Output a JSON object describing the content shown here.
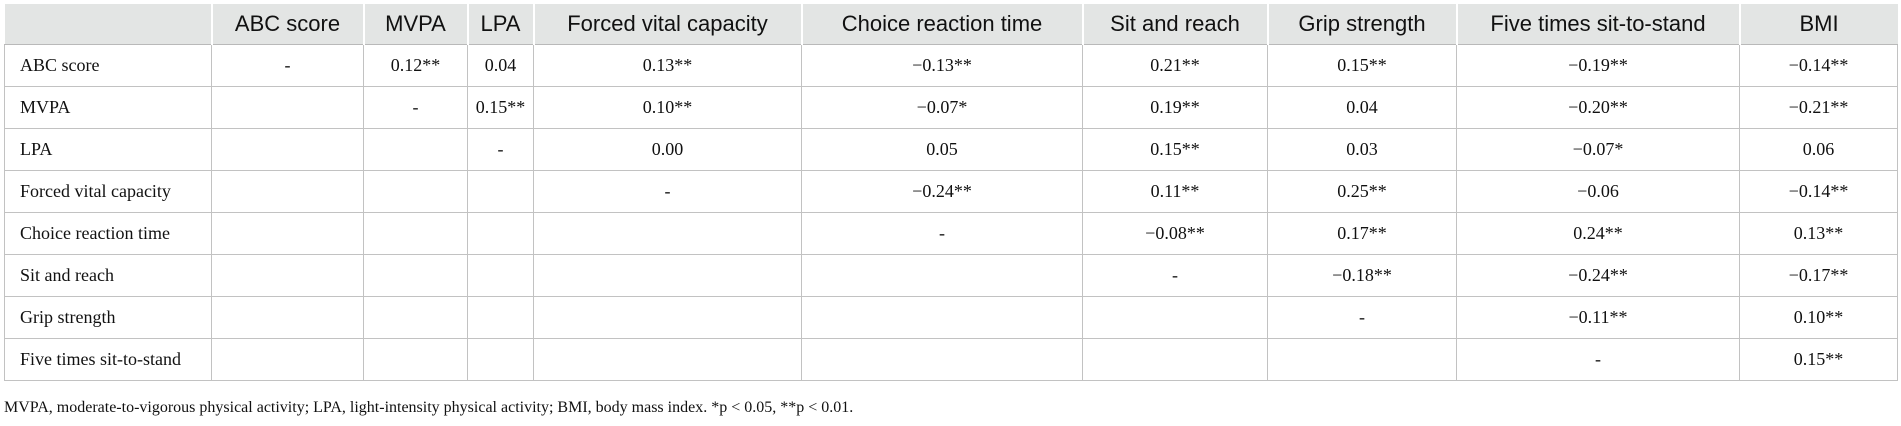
{
  "table": {
    "headers": [
      "",
      "ABC score",
      "MVPA",
      "LPA",
      "Forced vital capacity",
      "Choice reaction time",
      "Sit and reach",
      "Grip strength",
      "Five times sit-to-stand",
      "BMI"
    ],
    "rows": [
      {
        "label": "ABC score",
        "cells": [
          "-",
          "0.12**",
          "0.04",
          "0.13**",
          "−0.13**",
          "0.21**",
          "0.15**",
          "−0.19**",
          "−0.14**"
        ]
      },
      {
        "label": "MVPA",
        "cells": [
          "",
          "-",
          "0.15**",
          "0.10**",
          "−0.07*",
          "0.19**",
          "0.04",
          "−0.20**",
          "−0.21**"
        ]
      },
      {
        "label": "LPA",
        "cells": [
          "",
          "",
          "-",
          "0.00",
          "0.05",
          "0.15**",
          "0.03",
          "−0.07*",
          "0.06"
        ]
      },
      {
        "label": "Forced vital capacity",
        "cells": [
          "",
          "",
          "",
          "-",
          "−0.24**",
          "0.11**",
          "0.25**",
          "−0.06",
          "−0.14**"
        ]
      },
      {
        "label": "Choice reaction time",
        "cells": [
          "",
          "",
          "",
          "",
          "-",
          "−0.08**",
          "0.17**",
          "0.24**",
          "0.13**"
        ]
      },
      {
        "label": "Sit and reach",
        "cells": [
          "",
          "",
          "",
          "",
          "",
          "-",
          "−0.18**",
          "−0.24**",
          "−0.17**"
        ]
      },
      {
        "label": "Grip strength",
        "cells": [
          "",
          "",
          "",
          "",
          "",
          "",
          "-",
          "−0.11**",
          "0.10**"
        ]
      },
      {
        "label": "Five times sit-to-stand",
        "cells": [
          "",
          "",
          "",
          "",
          "",
          "",
          "",
          "-",
          "0.15**"
        ]
      }
    ]
  },
  "footnote": "MVPA, moderate-to-vigorous physical activity; LPA, light-intensity physical activity; BMI, body mass index. *p < 0.05, **p < 0.01.",
  "colors": {
    "header_background": "#e3e5e4",
    "border": "#c2c2c2",
    "text": "#111111"
  }
}
